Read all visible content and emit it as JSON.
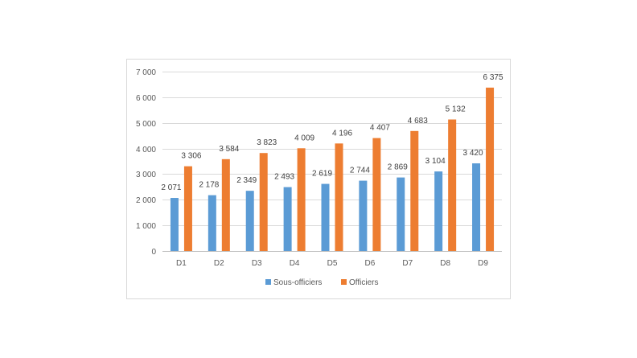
{
  "chart_data": {
    "type": "bar",
    "categories": [
      "D1",
      "D2",
      "D3",
      "D4",
      "D5",
      "D6",
      "D7",
      "D8",
      "D9"
    ],
    "series": [
      {
        "name": "Sous-officiers",
        "color": "#5B9BD5",
        "values": [
          2071,
          2178,
          2349,
          2493,
          2619,
          2744,
          2869,
          3104,
          3420
        ],
        "labels": [
          "2 071",
          "2 178",
          "2 349",
          "2 493",
          "2 619",
          "2 744",
          "2 869",
          "3 104",
          "3 420"
        ]
      },
      {
        "name": "Officiers",
        "color": "#ED7D31",
        "values": [
          3306,
          3584,
          3823,
          4009,
          4196,
          4407,
          4683,
          5132,
          6375
        ],
        "labels": [
          "3 306",
          "3 584",
          "3 823",
          "4 009",
          "4 196",
          "4 407",
          "4 683",
          "5 132",
          "6 375"
        ]
      }
    ],
    "yticks": [
      0,
      1000,
      2000,
      3000,
      4000,
      5000,
      6000,
      7000
    ],
    "ytick_labels": [
      "0",
      "1 000",
      "2 000",
      "3 000",
      "4 000",
      "5 000",
      "6 000",
      "7 000"
    ],
    "ylim": [
      0,
      7000
    ],
    "grid": true,
    "legend": "bottom",
    "title": "",
    "xlabel": "",
    "ylabel": ""
  }
}
